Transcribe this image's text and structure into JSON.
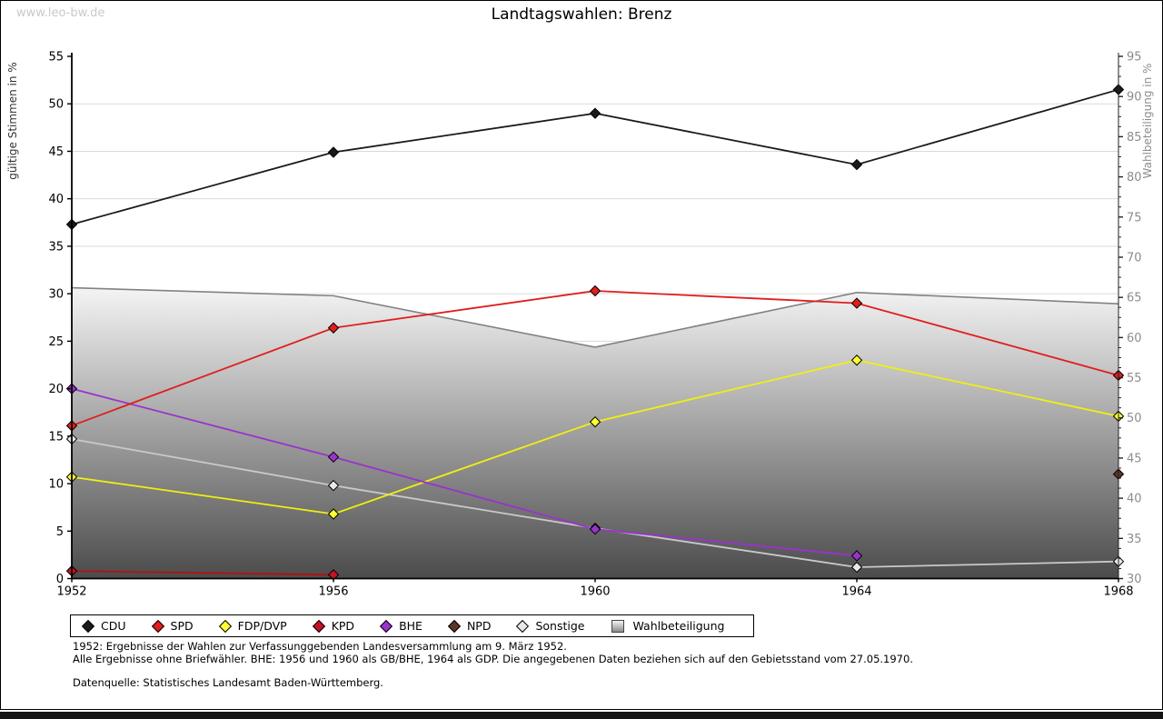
{
  "page": {
    "watermark": "www.leo-bw.de",
    "title": "Landtagswahlen: Brenz",
    "footnotes": {
      "line1": "1952: Ergebnisse der Wahlen zur Verfassunggebenden Landesversammlung am 9. März 1952.",
      "line2": "Alle Ergebnisse ohne Briefwähler. BHE: 1956 und 1960 als GB/BHE, 1964 als GDP. Die angegebenen Daten beziehen sich auf den Gebietsstand vom 27.05.1970.",
      "source": "Datenquelle: Statistisches Landesamt Baden-Württemberg."
    }
  },
  "chart_data": {
    "type": "line",
    "title": "Landtagswahlen: Brenz",
    "x": [
      1952,
      1956,
      1960,
      1964,
      1968
    ],
    "ylabel_left": "gültige Stimmen in %",
    "ylabel_right": "Wahlbeteiligung in %",
    "ylim_left": [
      0,
      55
    ],
    "ylim_right": [
      30,
      95
    ],
    "ytick_step": 5,
    "grid": true,
    "legend_position": "bottom",
    "colors": {
      "grid": "#d9d9d9",
      "axis": "#000000",
      "right_axis_text": "#8c8c8c",
      "left_axis_text": "#000000",
      "area_top": "#f4f4f4",
      "area_bottom": "#4b4b4b"
    },
    "series": [
      {
        "name": "CDU",
        "axis": "left",
        "type": "line",
        "color": "#1a1a1a",
        "marker_fill": "#1a1a1a",
        "values": [
          37.3,
          44.9,
          49.0,
          43.6,
          51.5
        ]
      },
      {
        "name": "SPD",
        "axis": "left",
        "type": "line",
        "color": "#e11d1d",
        "marker_fill": "#e11d1d",
        "values": [
          16.1,
          26.4,
          30.3,
          29.0,
          21.4
        ]
      },
      {
        "name": "FDP/DVP",
        "axis": "left",
        "type": "line",
        "color": "#f0f00f",
        "marker_fill": "#ffff33",
        "values": [
          10.7,
          6.8,
          16.5,
          23.0,
          17.1
        ]
      },
      {
        "name": "KPD",
        "axis": "left",
        "type": "line",
        "color": "#b51010",
        "marker_fill": "#c41227",
        "values": [
          0.8,
          0.4,
          null,
          null,
          null
        ]
      },
      {
        "name": "BHE",
        "axis": "left",
        "type": "line",
        "color": "#9933cc",
        "marker_fill": "#9933cc",
        "values": [
          20.0,
          12.8,
          5.2,
          2.4,
          null
        ]
      },
      {
        "name": "NPD",
        "axis": "left",
        "type": "line",
        "color": "#5c3624",
        "marker_fill": "#5c3624",
        "values": [
          null,
          null,
          null,
          null,
          11.0
        ]
      },
      {
        "name": "Sonstige",
        "axis": "left",
        "type": "line",
        "color": "#c9c9c9",
        "marker_fill": "#e8e8e8",
        "values": [
          14.7,
          9.8,
          5.3,
          1.2,
          1.8
        ]
      },
      {
        "name": "Wahlbeteiligung",
        "axis": "right",
        "type": "area",
        "color": "#828282",
        "marker_fill": "#9a9a9a",
        "values": [
          66.2,
          65.2,
          58.8,
          65.6,
          64.2
        ]
      }
    ]
  }
}
